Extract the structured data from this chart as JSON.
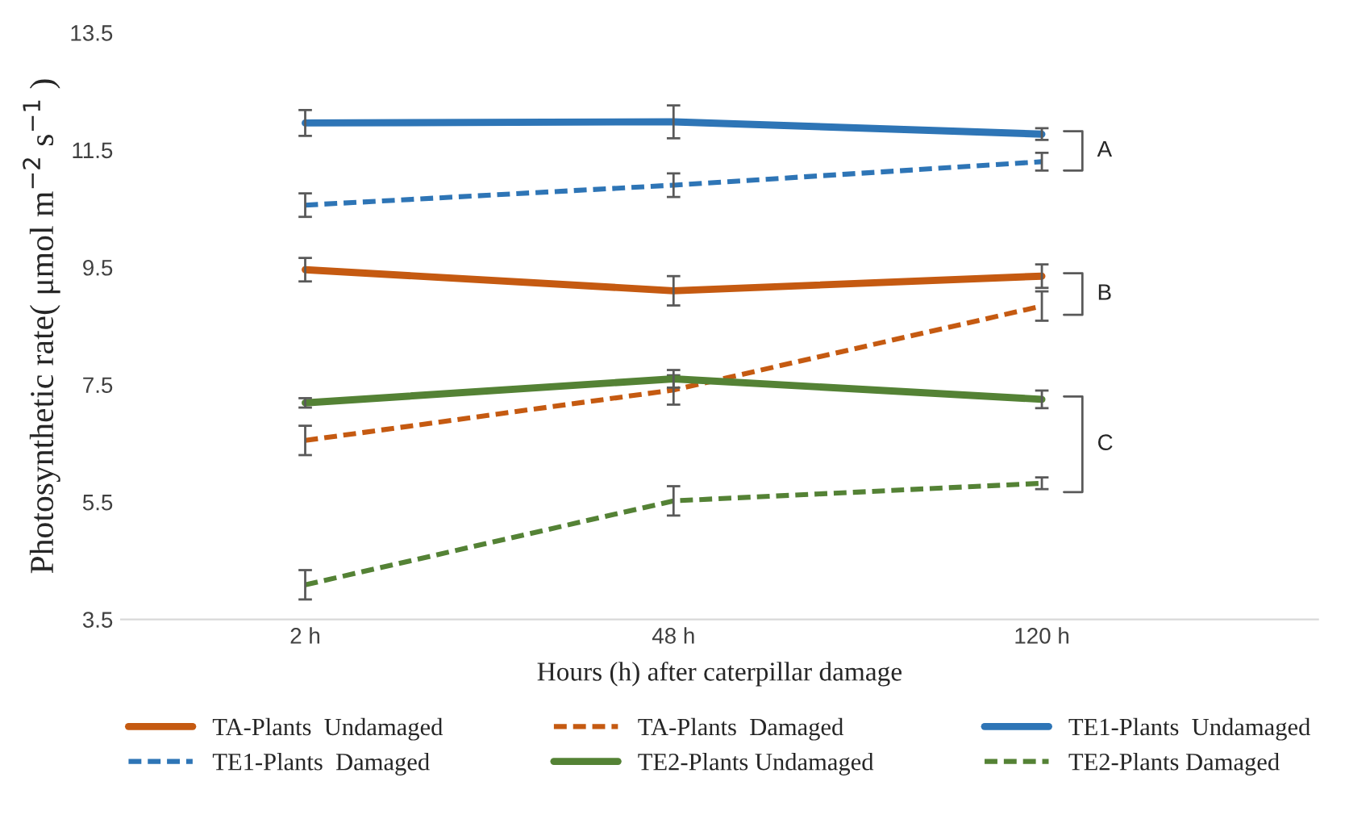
{
  "chart_data": {
    "type": "line",
    "xlabel": "Hours (h) after caterpillar damage",
    "ylabel": "Photosynthetic rate( μmol m$^{−2}$ s$^{−1}$ )",
    "categories": [
      "2 h",
      "48 h",
      "120 h"
    ],
    "ylim": [
      3.5,
      13.5
    ],
    "yticks": [
      3.5,
      5.5,
      7.5,
      9.5,
      11.5,
      13.5
    ],
    "grid": false,
    "legend": "bottom",
    "marker": "none",
    "series": [
      {
        "name": "TA-Plants  Undamaged",
        "color": "#c55a11",
        "line_style": "solid",
        "values": [
          9.46,
          9.1,
          9.35
        ],
        "errors": [
          0.2,
          0.25,
          0.2
        ]
      },
      {
        "name": "TA-Plants  Damaged",
        "color": "#c55a11",
        "line_style": "dashed",
        "values": [
          6.55,
          7.41,
          8.84
        ],
        "errors": [
          0.25,
          0.25,
          0.25
        ]
      },
      {
        "name": "TE1-Plants  Undamaged",
        "color": "#2e75b6",
        "line_style": "solid",
        "values": [
          11.96,
          11.98,
          11.77
        ],
        "errors": [
          0.22,
          0.28,
          0.1
        ]
      },
      {
        "name": "TE1-Plants  Damaged",
        "color": "#2e75b6",
        "line_style": "dashed",
        "values": [
          10.56,
          10.9,
          11.3
        ],
        "errors": [
          0.2,
          0.2,
          0.15
        ]
      },
      {
        "name": "TE2-Plants Undamaged",
        "color": "#548235",
        "line_style": "solid",
        "values": [
          7.19,
          7.6,
          7.25
        ],
        "errors": [
          0.08,
          0.15,
          0.15
        ]
      },
      {
        "name": "TE2-Plants Damaged",
        "color": "#548235",
        "line_style": "dashed",
        "values": [
          4.09,
          5.52,
          5.82
        ],
        "errors": [
          0.25,
          0.25,
          0.1
        ]
      }
    ],
    "annotations": [
      "A",
      "B",
      "C"
    ]
  }
}
